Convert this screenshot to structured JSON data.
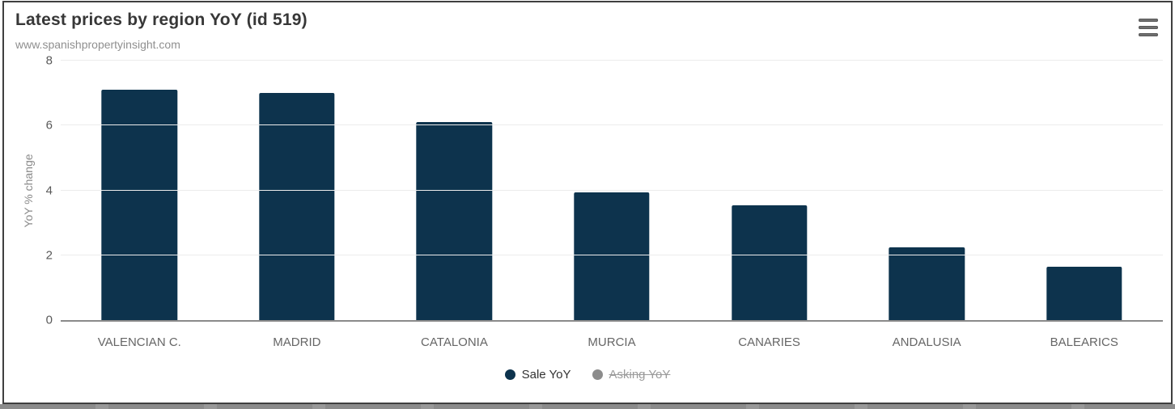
{
  "header": {
    "title": "Latest prices by region YoY (id 519)",
    "subtitle": "www.spanishpropertyinsight.com",
    "menu_icon": "hamburger-menu-icon"
  },
  "chart_data": {
    "type": "bar",
    "title": "Latest prices by region YoY (id 519)",
    "subtitle": "www.spanishpropertyinsight.com",
    "categories": [
      "VALENCIAN C.",
      "MADRID",
      "CATALONIA",
      "MURCIA",
      "CANARIES",
      "ANDALUSIA",
      "BALEARICS"
    ],
    "series": [
      {
        "name": "Sale YoY",
        "values": [
          7.1,
          7.0,
          6.1,
          3.95,
          3.55,
          2.25,
          1.65
        ],
        "color": "#0d334d",
        "visible": true
      },
      {
        "name": "Asking YoY",
        "values": [],
        "color": "#8c8c8c",
        "visible": false
      }
    ],
    "xlabel": "",
    "ylabel": "YoY % change",
    "ylim": [
      0,
      8
    ],
    "yticks": [
      0,
      2,
      4,
      6,
      8
    ],
    "grid": true,
    "legend_position": "bottom"
  },
  "colors": {
    "bar": "#0d334d",
    "gridline": "#ececec",
    "axis_line": "#8a8a8a",
    "title_text": "#373737",
    "subtitle_text": "#8f8f8f",
    "tick_text": "#595959",
    "category_text": "#666666",
    "legend_disabled_text": "#9b9b9b",
    "card_border": "#3f3f3f"
  }
}
